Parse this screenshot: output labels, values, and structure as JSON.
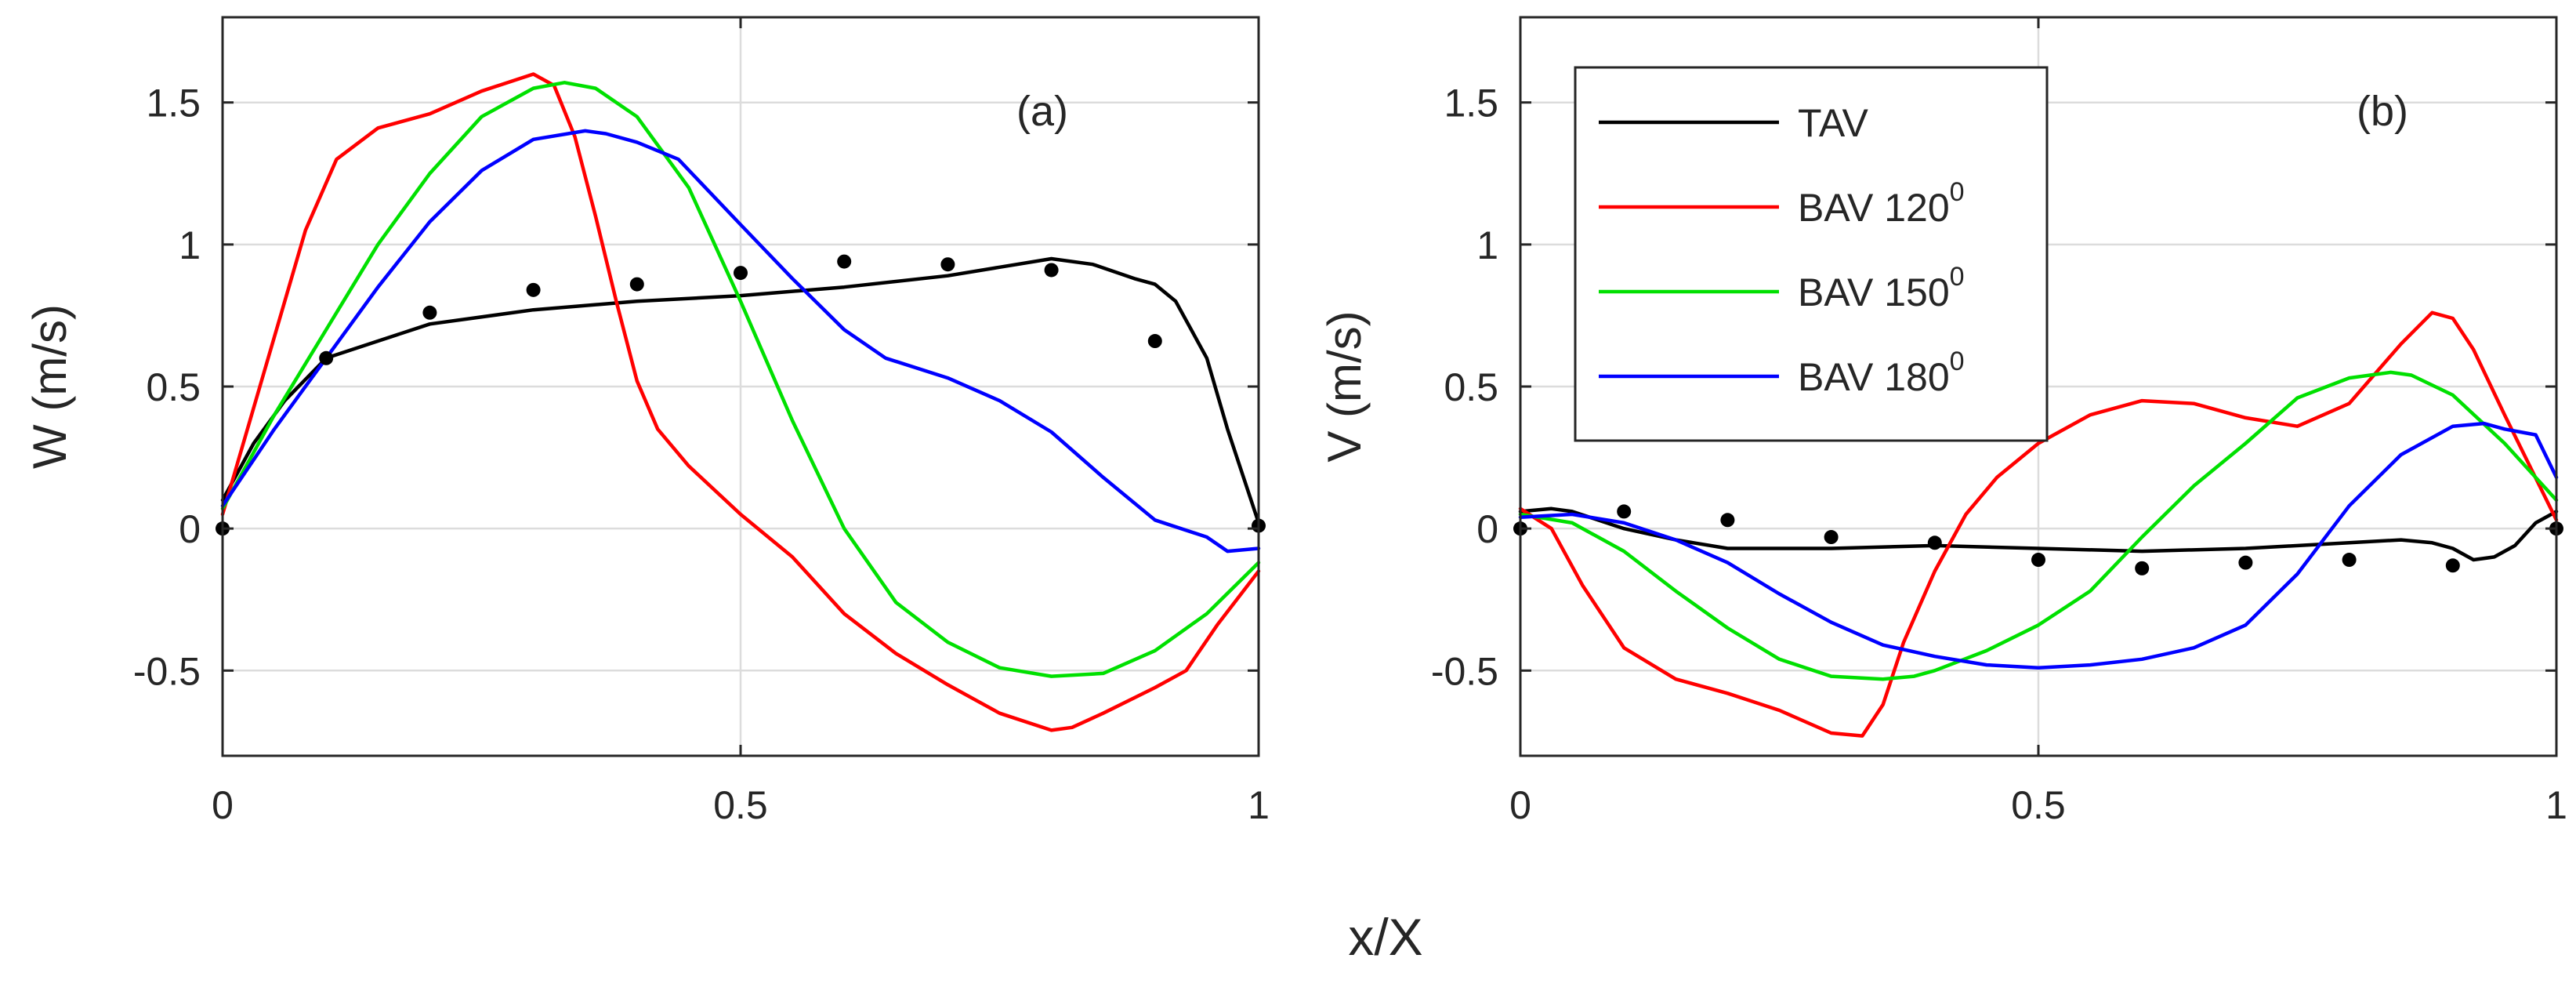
{
  "figure": {
    "shared_xlabel": "x/X"
  },
  "legend": {
    "entries": [
      {
        "series": "TAV",
        "text": "TAV",
        "sup": ""
      },
      {
        "series": "BAV 120",
        "text": "BAV 120",
        "sup": "0"
      },
      {
        "series": "BAV 150",
        "text": "BAV 150",
        "sup": "0"
      },
      {
        "series": "BAV 180",
        "text": "BAV 180",
        "sup": "0"
      }
    ],
    "location": "top-left of panel (b)"
  },
  "colors": {
    "TAV": "#000000",
    "BAV 120": "#ff0000",
    "BAV 150": "#00e000",
    "BAV 180": "#0000ff",
    "markers": "#000000",
    "grid": "#dcdcdc",
    "axes": "#262626"
  },
  "chart_data": [
    {
      "type": "line",
      "panel": "a",
      "panel_label": "(a)",
      "xlabel": "x/X",
      "ylabel": "W (m/s)",
      "xlim": [
        0,
        1
      ],
      "ylim": [
        -0.8,
        1.8
      ],
      "xticks": [
        0,
        0.5,
        1
      ],
      "xtick_labels": [
        "0",
        "0.5",
        "1"
      ],
      "yticks": [
        -0.5,
        0,
        0.5,
        1,
        1.5
      ],
      "ytick_labels": [
        "-0.5",
        "0",
        "0.5",
        "1",
        "1.5"
      ],
      "grid": true,
      "series": [
        {
          "name": "TAV",
          "x": [
            0,
            0.03,
            0.06,
            0.1,
            0.15,
            0.2,
            0.3,
            0.4,
            0.5,
            0.6,
            0.7,
            0.75,
            0.8,
            0.84,
            0.88,
            0.9,
            0.92,
            0.95,
            0.97,
            1.0
          ],
          "y": [
            0.1,
            0.3,
            0.45,
            0.6,
            0.66,
            0.72,
            0.77,
            0.8,
            0.82,
            0.85,
            0.89,
            0.92,
            0.95,
            0.93,
            0.88,
            0.86,
            0.8,
            0.6,
            0.35,
            0.02
          ]
        },
        {
          "name": "BAV 120",
          "x": [
            0,
            0.04,
            0.08,
            0.11,
            0.15,
            0.2,
            0.25,
            0.3,
            0.32,
            0.34,
            0.36,
            0.38,
            0.4,
            0.42,
            0.45,
            0.5,
            0.55,
            0.6,
            0.65,
            0.7,
            0.75,
            0.8,
            0.82,
            0.85,
            0.9,
            0.93,
            0.96,
            1.0
          ],
          "y": [
            0.05,
            0.55,
            1.05,
            1.3,
            1.41,
            1.46,
            1.54,
            1.6,
            1.56,
            1.38,
            1.1,
            0.8,
            0.52,
            0.35,
            0.22,
            0.05,
            -0.1,
            -0.3,
            -0.44,
            -0.55,
            -0.65,
            -0.71,
            -0.7,
            -0.65,
            -0.56,
            -0.5,
            -0.34,
            -0.15
          ]
        },
        {
          "name": "BAV 150",
          "x": [
            0,
            0.05,
            0.1,
            0.15,
            0.2,
            0.25,
            0.3,
            0.33,
            0.36,
            0.4,
            0.45,
            0.5,
            0.55,
            0.6,
            0.65,
            0.7,
            0.75,
            0.8,
            0.85,
            0.9,
            0.95,
            1.0
          ],
          "y": [
            0.07,
            0.4,
            0.7,
            1.0,
            1.25,
            1.45,
            1.55,
            1.57,
            1.55,
            1.45,
            1.2,
            0.8,
            0.38,
            0.0,
            -0.26,
            -0.4,
            -0.49,
            -0.52,
            -0.51,
            -0.43,
            -0.3,
            -0.12
          ]
        },
        {
          "name": "BAV 180",
          "x": [
            0,
            0.05,
            0.1,
            0.15,
            0.2,
            0.25,
            0.3,
            0.35,
            0.37,
            0.4,
            0.44,
            0.5,
            0.55,
            0.6,
            0.64,
            0.7,
            0.75,
            0.8,
            0.85,
            0.9,
            0.95,
            0.97,
            1.0
          ],
          "y": [
            0.08,
            0.35,
            0.6,
            0.85,
            1.08,
            1.26,
            1.37,
            1.4,
            1.39,
            1.36,
            1.3,
            1.07,
            0.88,
            0.7,
            0.6,
            0.53,
            0.45,
            0.34,
            0.18,
            0.03,
            -0.03,
            -0.08,
            -0.07
          ]
        }
      ],
      "markers": {
        "name": "measured (dots)",
        "x": [
          0,
          0.1,
          0.2,
          0.3,
          0.4,
          0.5,
          0.6,
          0.7,
          0.8,
          0.9,
          1.0
        ],
        "y": [
          0.0,
          0.6,
          0.76,
          0.84,
          0.86,
          0.9,
          0.94,
          0.93,
          0.91,
          0.66,
          0.01
        ]
      }
    },
    {
      "type": "line",
      "panel": "b",
      "panel_label": "(b)",
      "xlabel": "x/X",
      "ylabel": "V (m/s)",
      "xlim": [
        0,
        1
      ],
      "ylim": [
        -0.8,
        1.8
      ],
      "xticks": [
        0,
        0.5,
        1
      ],
      "xtick_labels": [
        "0",
        "0.5",
        "1"
      ],
      "yticks": [
        -0.5,
        0,
        0.5,
        1,
        1.5
      ],
      "ytick_labels": [
        "-0.5",
        "0",
        "0.5",
        "1",
        "1.5"
      ],
      "grid": true,
      "series": [
        {
          "name": "TAV",
          "x": [
            0,
            0.03,
            0.05,
            0.1,
            0.15,
            0.2,
            0.3,
            0.4,
            0.5,
            0.6,
            0.7,
            0.8,
            0.85,
            0.88,
            0.9,
            0.92,
            0.94,
            0.96,
            0.98,
            1.0
          ],
          "y": [
            0.06,
            0.07,
            0.06,
            0.0,
            -0.04,
            -0.07,
            -0.07,
            -0.06,
            -0.07,
            -0.08,
            -0.07,
            -0.05,
            -0.04,
            -0.05,
            -0.07,
            -0.11,
            -0.1,
            -0.06,
            0.02,
            0.06
          ]
        },
        {
          "name": "BAV 120",
          "x": [
            0,
            0.03,
            0.06,
            0.1,
            0.15,
            0.2,
            0.25,
            0.3,
            0.33,
            0.35,
            0.37,
            0.4,
            0.43,
            0.46,
            0.5,
            0.55,
            0.6,
            0.65,
            0.7,
            0.75,
            0.8,
            0.85,
            0.88,
            0.9,
            0.92,
            0.95,
            1.0
          ],
          "y": [
            0.07,
            0.0,
            -0.2,
            -0.42,
            -0.53,
            -0.58,
            -0.64,
            -0.72,
            -0.73,
            -0.62,
            -0.4,
            -0.15,
            0.05,
            0.18,
            0.3,
            0.4,
            0.45,
            0.44,
            0.39,
            0.36,
            0.44,
            0.65,
            0.76,
            0.74,
            0.63,
            0.4,
            0.03
          ]
        },
        {
          "name": "BAV 150",
          "x": [
            0,
            0.05,
            0.1,
            0.15,
            0.2,
            0.25,
            0.3,
            0.35,
            0.38,
            0.4,
            0.45,
            0.5,
            0.55,
            0.6,
            0.65,
            0.7,
            0.75,
            0.8,
            0.84,
            0.86,
            0.9,
            0.95,
            1.0
          ],
          "y": [
            0.05,
            0.02,
            -0.08,
            -0.22,
            -0.35,
            -0.46,
            -0.52,
            -0.53,
            -0.52,
            -0.5,
            -0.43,
            -0.34,
            -0.22,
            -0.03,
            0.15,
            0.3,
            0.46,
            0.53,
            0.55,
            0.54,
            0.47,
            0.3,
            0.1
          ]
        },
        {
          "name": "BAV 180",
          "x": [
            0,
            0.05,
            0.1,
            0.15,
            0.2,
            0.25,
            0.3,
            0.35,
            0.4,
            0.45,
            0.5,
            0.55,
            0.6,
            0.65,
            0.7,
            0.75,
            0.8,
            0.85,
            0.9,
            0.93,
            0.95,
            0.98,
            1.0
          ],
          "y": [
            0.04,
            0.05,
            0.02,
            -0.04,
            -0.12,
            -0.23,
            -0.33,
            -0.41,
            -0.45,
            -0.48,
            -0.49,
            -0.48,
            -0.46,
            -0.42,
            -0.34,
            -0.16,
            0.08,
            0.26,
            0.36,
            0.37,
            0.35,
            0.33,
            0.18
          ]
        }
      ],
      "markers": {
        "name": "measured (dots)",
        "x": [
          0,
          0.1,
          0.2,
          0.3,
          0.4,
          0.5,
          0.6,
          0.7,
          0.8,
          0.9,
          1.0
        ],
        "y": [
          0.0,
          0.06,
          0.03,
          -0.03,
          -0.05,
          -0.11,
          -0.14,
          -0.12,
          -0.11,
          -0.13,
          0.0
        ]
      }
    }
  ]
}
